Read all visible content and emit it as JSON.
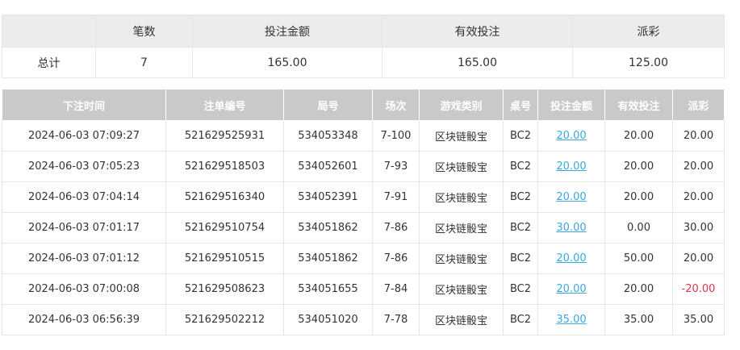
{
  "summary": {
    "headers": [
      "",
      "笔数",
      "投注金额",
      "有效投注",
      "派彩"
    ],
    "row": [
      "总计",
      "7",
      "165.00",
      "165.00",
      "125.00"
    ]
  },
  "records": {
    "headers": [
      "下注时间",
      "注单编号",
      "局号",
      "场次",
      "游戏类别",
      "桌号",
      "投注金额",
      "有效投注",
      "派彩"
    ],
    "rows": [
      [
        "2024-06-03 07:09:27",
        "521629525931",
        "534053348",
        "7-100",
        "区块链骰宝",
        "BC2",
        "20.00",
        "20.00",
        "20.00"
      ],
      [
        "2024-06-03 07:05:23",
        "521629518503",
        "534052601",
        "7-93",
        "区块链骰宝",
        "BC2",
        "20.00",
        "20.00",
        "20.00"
      ],
      [
        "2024-06-03 07:04:14",
        "521629516340",
        "534052391",
        "7-91",
        "区块链骰宝",
        "BC2",
        "20.00",
        "20.00",
        "20.00"
      ],
      [
        "2024-06-03 07:01:17",
        "521629510754",
        "534051862",
        "7-86",
        "区块链骰宝",
        "BC2",
        "30.00",
        "0.00",
        "30.00"
      ],
      [
        "2024-06-03 07:01:12",
        "521629510515",
        "534051862",
        "7-86",
        "区块链骰宝",
        "BC2",
        "20.00",
        "50.00",
        "20.00"
      ],
      [
        "2024-06-03 07:00:08",
        "521629508623",
        "534051655",
        "7-84",
        "区块链骰宝",
        "BC2",
        "20.00",
        "20.00",
        "-20.00"
      ],
      [
        "2024-06-03 06:56:39",
        "521629502212",
        "534051020",
        "7-78",
        "区块链骰宝",
        "BC2",
        "35.00",
        "35.00",
        "35.00"
      ]
    ]
  },
  "colors": {
    "link": "#3ba7e0",
    "negative": "#e0334d",
    "header_bg": "#c9c9c9"
  }
}
